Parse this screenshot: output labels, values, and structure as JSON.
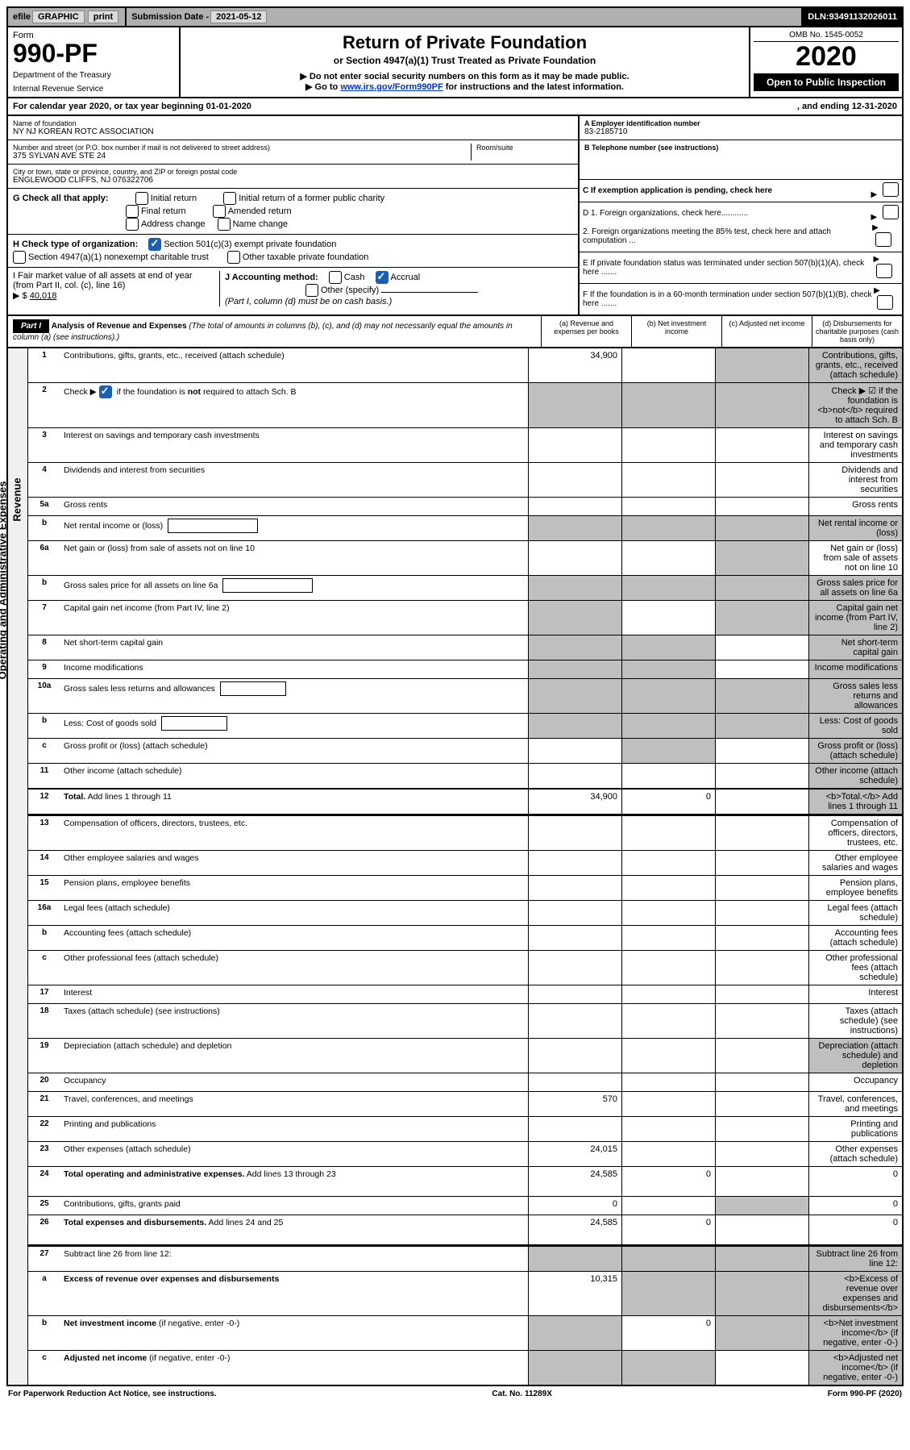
{
  "top": {
    "efile_prefix": "efile",
    "graphic_btn": "GRAPHIC",
    "print_btn": "print",
    "submission_label": "Submission Date - ",
    "submission_date": "2021-05-12",
    "dln_label": "DLN: ",
    "dln": "93491132026011"
  },
  "header": {
    "form_label": "Form",
    "form_number": "990-PF",
    "dept1": "Department of the Treasury",
    "dept2": "Internal Revenue Service",
    "title": "Return of Private Foundation",
    "subtitle": "or Section 4947(a)(1) Trust Treated as Private Foundation",
    "instr1": "▶ Do not enter social security numbers on this form as it may be made public.",
    "instr2_prefix": "▶ Go to ",
    "instr2_link": "www.irs.gov/Form990PF",
    "instr2_suffix": " for instructions and the latest information.",
    "omb": "OMB No. 1545-0052",
    "year": "2020",
    "open_public": "Open to Public Inspection"
  },
  "tax_year": {
    "prefix": "For calendar year 2020, or tax year beginning ",
    "begin": "01-01-2020",
    "mid": ", and ending ",
    "end": "12-31-2020"
  },
  "entity": {
    "name_label": "Name of foundation",
    "name": "NY NJ KOREAN ROTC ASSOCIATION",
    "addr_label": "Number and street (or P.O. box number if mail is not delivered to street address)",
    "addr": "375 SYLVAN AVE STE 24",
    "room_label": "Room/suite",
    "city_label": "City or town, state or province, country, and ZIP or foreign postal code",
    "city": "ENGLEWOOD CLIFFS, NJ  076322706",
    "ein_label": "A Employer identification number",
    "ein": "83-2185710",
    "tel_label": "B Telephone number (see instructions)",
    "c_label": "C If exemption application is pending, check here"
  },
  "g": {
    "label": "G Check all that apply:",
    "opts": [
      "Initial return",
      "Initial return of a former public charity",
      "Final return",
      "Amended return",
      "Address change",
      "Name change"
    ]
  },
  "h": {
    "label": "H Check type of organization:",
    "opt1": "Section 501(c)(3) exempt private foundation",
    "opt2": "Section 4947(a)(1) nonexempt charitable trust",
    "opt3": "Other taxable private foundation"
  },
  "i": {
    "label": "I Fair market value of all assets at end of year (from Part II, col. (c), line 16)",
    "prefix": "▶ $",
    "value": "40,018"
  },
  "j": {
    "label": "J Accounting method:",
    "cash": "Cash",
    "accrual": "Accrual",
    "other": "Other (specify)",
    "note": "(Part I, column (d) must be on cash basis.)"
  },
  "right_d": {
    "d1": "D 1. Foreign organizations, check here............",
    "d2": "2. Foreign organizations meeting the 85% test, check here and attach computation ...",
    "e": "E  If private foundation status was terminated under section 507(b)(1)(A), check here .......",
    "f": "F  If the foundation is in a 60-month termination under section 507(b)(1)(B), check here ......."
  },
  "part1": {
    "label": "Part I",
    "title": "Analysis of Revenue and Expenses",
    "note": "(The total of amounts in columns (b), (c), and (d) may not necessarily equal the amounts in column (a) (see instructions).)",
    "cols": {
      "a": "(a) Revenue and expenses per books",
      "b": "(b) Net investment income",
      "c": "(c) Adjusted net income",
      "d": "(d) Disbursements for charitable purposes (cash basis only)"
    }
  },
  "side": {
    "revenue": "Revenue",
    "expenses": "Operating and Administrative Expenses"
  },
  "lines": [
    {
      "n": "1",
      "d": "Contributions, gifts, grants, etc., received (attach schedule)",
      "a": "34,900",
      "bg": "",
      "cg": "g",
      "dg": "g"
    },
    {
      "n": "2",
      "d": "Check ▶ ☑ if the foundation is <b>not</b> required to attach Sch. B",
      "nocells": true,
      "check": true
    },
    {
      "n": "3",
      "d": "Interest on savings and temporary cash investments"
    },
    {
      "n": "4",
      "d": "Dividends and interest from securities"
    },
    {
      "n": "5a",
      "d": "Gross rents"
    },
    {
      "n": "b",
      "d": "Net rental income or (loss)",
      "inner": true,
      "greyall": true
    },
    {
      "n": "6a",
      "d": "Net gain or (loss) from sale of assets not on line 10",
      "cg": "g"
    },
    {
      "n": "b",
      "d": "Gross sales price for all assets on line 6a",
      "inner": true,
      "greyall": true
    },
    {
      "n": "7",
      "d": "Capital gain net income (from Part IV, line 2)",
      "ag": "g",
      "cg": "g",
      "dg": "g"
    },
    {
      "n": "8",
      "d": "Net short-term capital gain",
      "ag": "g",
      "bg": "g",
      "dg": "g"
    },
    {
      "n": "9",
      "d": "Income modifications",
      "ag": "g",
      "bg": "g",
      "dg": "g"
    },
    {
      "n": "10a",
      "d": "Gross sales less returns and allowances",
      "innersm": true,
      "greyall": true
    },
    {
      "n": "b",
      "d": "Less: Cost of goods sold",
      "innersm": true,
      "greyall": true
    },
    {
      "n": "c",
      "d": "Gross profit or (loss) (attach schedule)",
      "bg": "g",
      "dg": "g"
    },
    {
      "n": "11",
      "d": "Other income (attach schedule)",
      "dg": "g"
    },
    {
      "n": "12",
      "d": "<b>Total.</b> Add lines 1 through 11",
      "a": "34,900",
      "b": "0",
      "dg": "g",
      "divider": true
    }
  ],
  "exp_lines": [
    {
      "n": "13",
      "d": "Compensation of officers, directors, trustees, etc."
    },
    {
      "n": "14",
      "d": "Other employee salaries and wages"
    },
    {
      "n": "15",
      "d": "Pension plans, employee benefits"
    },
    {
      "n": "16a",
      "d": "Legal fees (attach schedule)"
    },
    {
      "n": "b",
      "d": "Accounting fees (attach schedule)"
    },
    {
      "n": "c",
      "d": "Other professional fees (attach schedule)"
    },
    {
      "n": "17",
      "d": "Interest"
    },
    {
      "n": "18",
      "d": "Taxes (attach schedule) (see instructions)"
    },
    {
      "n": "19",
      "d": "Depreciation (attach schedule) and depletion",
      "dg": "g"
    },
    {
      "n": "20",
      "d": "Occupancy"
    },
    {
      "n": "21",
      "d": "Travel, conferences, and meetings",
      "a": "570"
    },
    {
      "n": "22",
      "d": "Printing and publications"
    },
    {
      "n": "23",
      "d": "Other expenses (attach schedule)",
      "a": "24,015"
    },
    {
      "n": "24",
      "d": "<b>Total operating and administrative expenses.</b> Add lines 13 through 23",
      "a": "24,585",
      "b": "0",
      "dval": "0",
      "tall": true
    },
    {
      "n": "25",
      "d": "Contributions, gifts, grants paid",
      "a": "0",
      "cg": "g",
      "dval": "0"
    },
    {
      "n": "26",
      "d": "<b>Total expenses and disbursements.</b> Add lines 24 and 25",
      "a": "24,585",
      "b": "0",
      "dval": "0",
      "tall": true,
      "divider_after": true
    },
    {
      "n": "27",
      "d": "Subtract line 26 from line 12:",
      "greyall": true
    },
    {
      "n": "a",
      "d": "<b>Excess of revenue over expenses and disbursements</b>",
      "a": "10,315",
      "bg": "g",
      "cg": "g",
      "dg": "g"
    },
    {
      "n": "b",
      "d": "<b>Net investment income</b> (if negative, enter -0-)",
      "ag": "g",
      "b": "0",
      "cg": "g",
      "dg": "g"
    },
    {
      "n": "c",
      "d": "<b>Adjusted net income</b> (if negative, enter -0-)",
      "ag": "g",
      "bg": "g",
      "dg": "g"
    }
  ],
  "footer": {
    "left": "For Paperwork Reduction Act Notice, see instructions.",
    "mid": "Cat. No. 11289X",
    "right": "Form 990-PF (2020)"
  },
  "colors": {
    "grey_cell": "#bfbfbf",
    "link": "#0033cc",
    "check_blue": "#1a5fb4"
  }
}
